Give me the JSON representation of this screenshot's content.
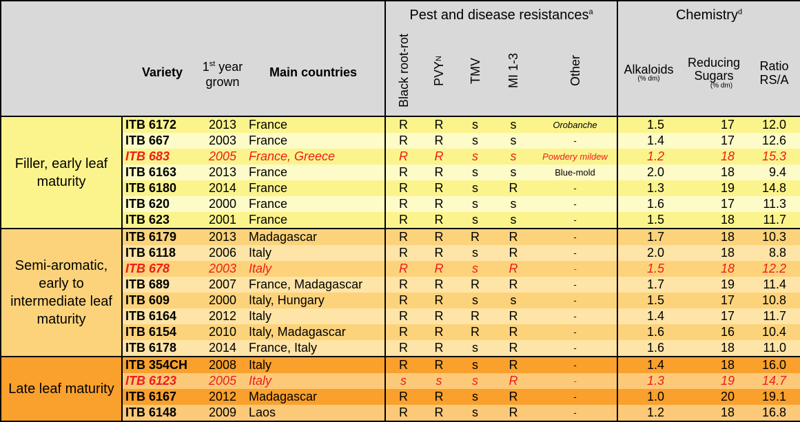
{
  "header": {
    "pest_title": "Pest and disease resistances",
    "pest_sup": "a",
    "chem_title": "Chemistry",
    "chem_sup": "d",
    "variety": "Variety",
    "first_year_pre": "1",
    "first_year_sup": "st",
    "first_year_post": " year",
    "first_year_line2": "grown",
    "main_countries": "Main countries",
    "black_root_rot": "Black root-rot",
    "pvy": "PVY",
    "pvy_sup": "N",
    "tmv": "TMV",
    "mi": "MI 1-3",
    "other": "Other",
    "alkaloids": "Alkaloids",
    "alkaloids_unit": "(% dm)",
    "reducing_line1": "Reducing",
    "reducing_line2": "Sugars",
    "reducing_unit": "(% dm)",
    "ratio_line1": "Ratio",
    "ratio_line2": "RS/A"
  },
  "groups": [
    {
      "label": "Filler, early leaf maturity",
      "color_a": "#fbf48c",
      "color_b": "#fdfbc8",
      "rows": [
        {
          "name": "ITB 6172",
          "year": "2013",
          "country": "France",
          "brr": "R",
          "pvy": "R",
          "tmv": "s",
          "mi": "s",
          "other": "Orobanche",
          "other_italic": true,
          "alk": "1.5",
          "rs": "17",
          "ratio": "12.0",
          "highlight": false
        },
        {
          "name": "ITB 667",
          "year": "2003",
          "country": "France",
          "brr": "R",
          "pvy": "R",
          "tmv": "s",
          "mi": "s",
          "other": "-",
          "other_italic": false,
          "alk": "1.4",
          "rs": "17",
          "ratio": "12.6",
          "highlight": false
        },
        {
          "name": "ITB 683",
          "year": "2005",
          "country": "France, Greece",
          "brr": "R",
          "pvy": "R",
          "tmv": "s",
          "mi": "s",
          "other": "Powdery mildew",
          "other_italic": true,
          "alk": "1.2",
          "rs": "18",
          "ratio": "15.3",
          "highlight": true
        },
        {
          "name": "ITB 6163",
          "year": "2013",
          "country": "France",
          "brr": "R",
          "pvy": "R",
          "tmv": "s",
          "mi": "s",
          "other": "Blue-mold",
          "other_italic": false,
          "alk": "2.0",
          "rs": "18",
          "ratio": "9.4",
          "highlight": false
        },
        {
          "name": "ITB 6180",
          "year": "2014",
          "country": "France",
          "brr": "R",
          "pvy": "R",
          "tmv": "s",
          "mi": "R",
          "other": "-",
          "other_italic": false,
          "alk": "1.3",
          "rs": "19",
          "ratio": "14.8",
          "highlight": false
        },
        {
          "name": "ITB 620",
          "year": "2000",
          "country": "France",
          "brr": "R",
          "pvy": "R",
          "tmv": "s",
          "mi": "s",
          "other": "-",
          "other_italic": false,
          "alk": "1.6",
          "rs": "17",
          "ratio": "11.3",
          "highlight": false
        },
        {
          "name": "ITB 623",
          "year": "2001",
          "country": "France",
          "brr": "R",
          "pvy": "R",
          "tmv": "s",
          "mi": "s",
          "other": "-",
          "other_italic": false,
          "alk": "1.5",
          "rs": "18",
          "ratio": "11.7",
          "highlight": false
        }
      ]
    },
    {
      "label": "Semi-aromatic, early to intermediate leaf maturity",
      "color_a": "#fcd37a",
      "color_b": "#fee4a6",
      "rows": [
        {
          "name": "ITB 6179",
          "year": "2013",
          "country": "Madagascar",
          "brr": "R",
          "pvy": "R",
          "tmv": "R",
          "mi": "R",
          "other": "-",
          "other_italic": false,
          "alk": "1.7",
          "rs": "18",
          "ratio": "10.3",
          "highlight": false
        },
        {
          "name": "ITB 6118",
          "year": "2006",
          "country": "Italy",
          "brr": "R",
          "pvy": "R",
          "tmv": "s",
          "mi": "R",
          "other": "-",
          "other_italic": false,
          "alk": "2.0",
          "rs": "18",
          "ratio": "8.8",
          "highlight": false
        },
        {
          "name": "ITB 678",
          "year": "2003",
          "country": "Italy",
          "brr": "R",
          "pvy": "R",
          "tmv": "s",
          "mi": "R",
          "other": "-",
          "other_italic": false,
          "alk": "1.5",
          "rs": "18",
          "ratio": "12.2",
          "highlight": true
        },
        {
          "name": "ITB 689",
          "year": "2007",
          "country": "France, Madagascar",
          "brr": "R",
          "pvy": "R",
          "tmv": "R",
          "mi": "R",
          "other": "-",
          "other_italic": false,
          "alk": "1.7",
          "rs": "19",
          "ratio": "11.4",
          "highlight": false
        },
        {
          "name": "ITB 609",
          "year": "2000",
          "country": "Italy, Hungary",
          "brr": "R",
          "pvy": "R",
          "tmv": "s",
          "mi": "s",
          "other": "-",
          "other_italic": false,
          "alk": "1.5",
          "rs": "17",
          "ratio": "10.8",
          "highlight": false
        },
        {
          "name": "ITB 6164",
          "year": "2012",
          "country": "Italy",
          "brr": "R",
          "pvy": "R",
          "tmv": "R",
          "mi": "R",
          "other": "-",
          "other_italic": false,
          "alk": "1.4",
          "rs": "17",
          "ratio": "11.7",
          "highlight": false
        },
        {
          "name": "ITB 6154",
          "year": "2010",
          "country": "Italy, Madagascar",
          "brr": "R",
          "pvy": "R",
          "tmv": "R",
          "mi": "R",
          "other": "-",
          "other_italic": false,
          "alk": "1.6",
          "rs": "16",
          "ratio": "10.4",
          "highlight": false
        },
        {
          "name": "ITB 6178",
          "year": "2014",
          "country": "France, Italy",
          "brr": "R",
          "pvy": "R",
          "tmv": "s",
          "mi": "R",
          "other": "-",
          "other_italic": false,
          "alk": "1.6",
          "rs": "18",
          "ratio": "11.0",
          "highlight": false
        }
      ]
    },
    {
      "label": "Late leaf maturity",
      "color_a": "#f9a02d",
      "color_b": "#fcc978",
      "rows": [
        {
          "name": "ITB 354CH",
          "year": "2008",
          "country": "Italy",
          "brr": "R",
          "pvy": "R",
          "tmv": "s",
          "mi": "R",
          "other": "-",
          "other_italic": false,
          "alk": "1.4",
          "rs": "18",
          "ratio": "16.0",
          "highlight": false
        },
        {
          "name": "ITB 6123",
          "year": "2005",
          "country": "Italy",
          "brr": "s",
          "pvy": "s",
          "tmv": "s",
          "mi": "R",
          "other": "-",
          "other_italic": false,
          "alk": "1.3",
          "rs": "19",
          "ratio": "14.7",
          "highlight": true
        },
        {
          "name": "ITB 6167",
          "year": "2012",
          "country": "Madagascar",
          "brr": "R",
          "pvy": "R",
          "tmv": "s",
          "mi": "R",
          "other": "-",
          "other_italic": false,
          "alk": "1.0",
          "rs": "20",
          "ratio": "19.1",
          "highlight": false
        },
        {
          "name": "ITB 6148",
          "year": "2009",
          "country": "Laos",
          "brr": "R",
          "pvy": "R",
          "tmv": "s",
          "mi": "R",
          "other": "-",
          "other_italic": false,
          "alk": "1.2",
          "rs": "18",
          "ratio": "16.8",
          "highlight": false
        }
      ]
    }
  ]
}
